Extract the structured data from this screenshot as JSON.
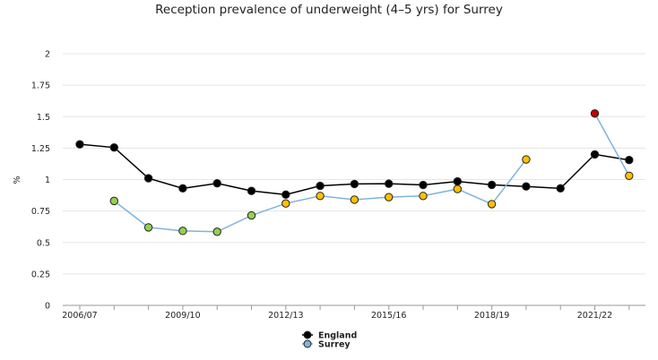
{
  "chart_data": {
    "type": "line",
    "title": "Reception prevalence of underweight (4–5 yrs) for Surrey",
    "ylabel": "%",
    "ylim": [
      0,
      2
    ],
    "yticks": [
      "0",
      "0.25",
      "0.5",
      "0.75",
      "1",
      "1.25",
      "1.5",
      "1.75",
      "2"
    ],
    "x": [
      "2006/07",
      "2007/08",
      "2008/09",
      "2009/10",
      "2010/11",
      "2011/12",
      "2012/13",
      "2013/14",
      "2014/15",
      "2015/16",
      "2016/17",
      "2017/18",
      "2018/19",
      "2019/20",
      "2020/21",
      "2021/22",
      "2022/23"
    ],
    "xtick_labels": [
      "2006/07",
      "2009/10",
      "2012/13",
      "2015/16",
      "2018/19",
      "2021/22"
    ],
    "grid": "horizontal",
    "legend_position": "bottom",
    "series": [
      {
        "name": "England",
        "line_color": "#000000",
        "marker_color": "#000000",
        "values": [
          1.28,
          1.255,
          1.01,
          0.93,
          0.97,
          0.91,
          0.88,
          0.95,
          0.965,
          0.967,
          0.957,
          0.985,
          0.958,
          0.945,
          0.93,
          1.2,
          1.155
        ]
      },
      {
        "name": "Surrey",
        "line_color": "#7fb3dc",
        "marker_color": "#7fb3dc",
        "values": [
          null,
          0.83,
          0.62,
          0.592,
          0.585,
          0.715,
          0.81,
          0.87,
          0.84,
          0.86,
          0.87,
          0.925,
          0.805,
          1.16,
          null,
          1.525,
          1.03
        ],
        "point_colors": [
          null,
          "#92d050",
          "#92d050",
          "#92d050",
          "#92d050",
          "#92d050",
          "#ffc000",
          "#ffc000",
          "#ffc000",
          "#ffc000",
          "#ffc000",
          "#ffc000",
          "#ffc000",
          "#ffc000",
          null,
          "#c00000",
          "#ffc000"
        ]
      }
    ]
  }
}
